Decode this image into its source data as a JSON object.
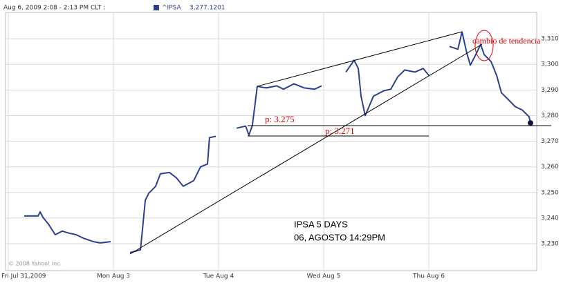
{
  "chart_data": {
    "type": "line",
    "header": {
      "date": "Aug 6, 2009 2:08 - 2:13 PM CLT :",
      "last_label": "3,277.1201"
    },
    "copyright": "© 2008 Yahoo! Inc.",
    "annotations": {
      "price_1": "p: 3.275",
      "price_2": "p: 3.271",
      "trend": "cambio de tendencia",
      "title": "IPSA 5 DAYS",
      "date": "06, AGOSTO 14:29PM"
    },
    "x": [
      0.151,
      0.217,
      0.283,
      0.303,
      0.329,
      0.382,
      0.447,
      0.513,
      0.579,
      0.645,
      0.711,
      0.809,
      0.875,
      0.974,
      1.072,
      1.158,
      1.257,
      1.303,
      1.336,
      1.401,
      1.447,
      1.533,
      1.599,
      1.664,
      1.763,
      1.829,
      1.895,
      1.914,
      1.974,
      2.072,
      2.171,
      2.257,
      2.289,
      2.322,
      2.368,
      2.454,
      2.553,
      2.618,
      2.717,
      2.816,
      2.914,
      2.98,
      3.092,
      3.211,
      3.289,
      3.329,
      3.355,
      3.395,
      3.474,
      3.572,
      3.638,
      3.704,
      3.77,
      3.868,
      3.947,
      4.0,
      4.099,
      4.197,
      4.276,
      4.316,
      4.362,
      4.395,
      4.447,
      4.493,
      4.526,
      4.592,
      4.645,
      4.691,
      4.757,
      4.822,
      4.888,
      4.954,
      4.967
    ],
    "series": [
      {
        "name": "^IPSA",
        "color": "#2b3f8e",
        "values": [
          3240.8,
          3240.8,
          3240.8,
          3242.4,
          3240.3,
          3237.6,
          3233.5,
          3234.9,
          3234.1,
          3233.5,
          3232.2,
          3230.8,
          3230.3,
          3230.8,
          null,
          3226.5,
          3227.6,
          3247.0,
          3249.7,
          3252.4,
          3257.3,
          3257.8,
          3255.7,
          3252.4,
          3254.6,
          3260.0,
          3261.1,
          3271.4,
          3271.9,
          null,
          3275.1,
          3275.9,
          3272.4,
          3276.2,
          3291.4,
          3290.8,
          3291.6,
          3290.3,
          3292.4,
          3290.8,
          3290.3,
          3291.6,
          null,
          3297.0,
          3301.6,
          3298.4,
          3287.6,
          3280.0,
          3287.6,
          3289.7,
          3290.3,
          3295.1,
          3297.8,
          3297.0,
          3298.4,
          3295.7,
          null,
          3307.0,
          3305.9,
          3312.7,
          3304.3,
          3299.7,
          3303.8,
          3307.8,
          3303.8,
          3301.1,
          3295.7,
          3288.9,
          3286.2,
          3283.5,
          3282.2,
          3279.5,
          3277.1201
        ]
      }
    ],
    "xlim": [
      0,
      5
    ],
    "xticks": [
      {
        "value": 0,
        "label": "Fri Jul 31,2009"
      },
      {
        "value": 1,
        "label": "Mon Aug 3"
      },
      {
        "value": 2,
        "label": "Tue Aug 4"
      },
      {
        "value": 3,
        "label": "Wed Aug 5"
      },
      {
        "value": 4,
        "label": "Thu Aug 6"
      }
    ],
    "ylim": [
      3219.5,
      3321
    ],
    "yticks": [
      {
        "value": 3230,
        "label": "3,230"
      },
      {
        "value": 3240,
        "label": "3,240"
      },
      {
        "value": 3250,
        "label": "3,250"
      },
      {
        "value": 3260,
        "label": "3,260"
      },
      {
        "value": 3270,
        "label": "3,270"
      },
      {
        "value": 3280,
        "label": "3,280"
      },
      {
        "value": 3290,
        "label": "3,290"
      },
      {
        "value": 3300,
        "label": "3,300"
      },
      {
        "value": 3310,
        "label": "3,310"
      }
    ],
    "grid": true
  }
}
